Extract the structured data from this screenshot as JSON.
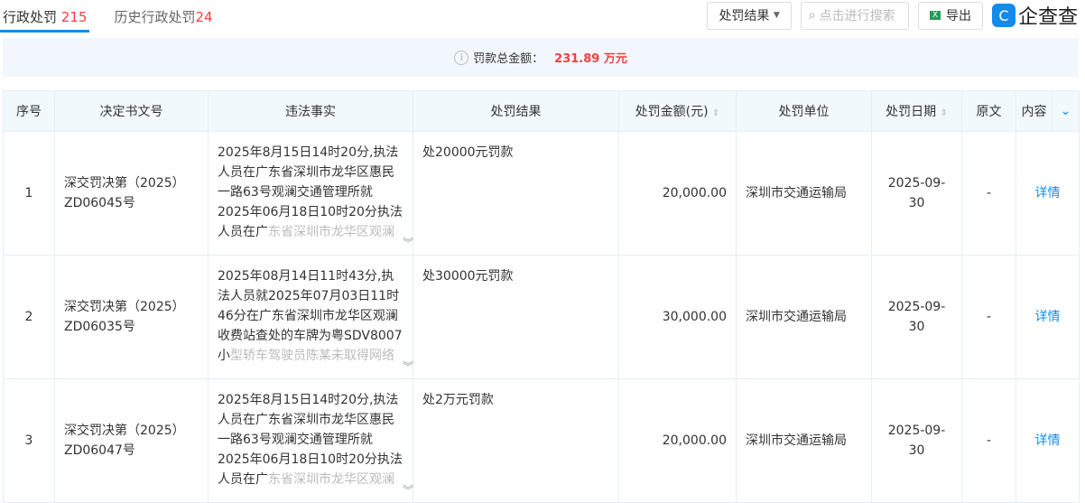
{
  "tabs": [
    {
      "label": "行政处罚",
      "count": "215",
      "active": true
    },
    {
      "label": "历史行政处罚",
      "count": "24",
      "active": false
    }
  ],
  "toolbar": {
    "filter_label": "处罚结果",
    "search_placeholder": "点击进行搜索",
    "export_label": "导出",
    "logo_text": "企查查"
  },
  "summary": {
    "label": "罚款总金额：",
    "amount": "231.89 万元"
  },
  "colors": {
    "accent": "#128bed",
    "highlight": "#f04040"
  },
  "table": {
    "headers": [
      "序号",
      "决定书文号",
      "违法事实",
      "处罚结果",
      "处罚金额(元)",
      "处罚单位",
      "处罚日期",
      "原文",
      "内容"
    ],
    "rows": [
      {
        "index": "1",
        "doc_no": "深交罚决第（2025）ZD06045号",
        "fact": "2025年8月15日14时20分,执法人员在广东省深圳市龙华区惠民一路63号观澜交通管理所就2025年06月18日10时20分执法人员在广",
        "fact_more": "东省深圳市龙华区观澜收费站查",
        "result": "处20000元罚款",
        "amount": "20,000.00",
        "unit": "深圳市交通运输局",
        "date": "2025-09-30",
        "original": "-",
        "content": "详情"
      },
      {
        "index": "2",
        "doc_no": "深交罚决第（2025）ZD06035号",
        "fact": "2025年08月14日11时43分,执法人员就2025年07月03日11时46分在广东省深圳市龙华区观澜收费站查处的车牌为粤SDV8007小",
        "fact_more": "型轿车驾驶员陈某未取得网络预",
        "result": "处30000元罚款",
        "amount": "30,000.00",
        "unit": "深圳市交通运输局",
        "date": "2025-09-30",
        "original": "-",
        "content": "详情"
      },
      {
        "index": "3",
        "doc_no": "深交罚决第（2025）ZD06047号",
        "fact": "2025年8月15日14时20分,执法人员在广东省深圳市龙华区惠民一路63号观澜交通管理所就2025年06月18日10时20分执法人员在广",
        "fact_more": "东省深圳市龙华区观澜收费站查",
        "result": "处2万元罚款",
        "amount": "20,000.00",
        "unit": "深圳市交通运输局",
        "date": "2025-09-30",
        "original": "-",
        "content": "详情"
      }
    ]
  }
}
